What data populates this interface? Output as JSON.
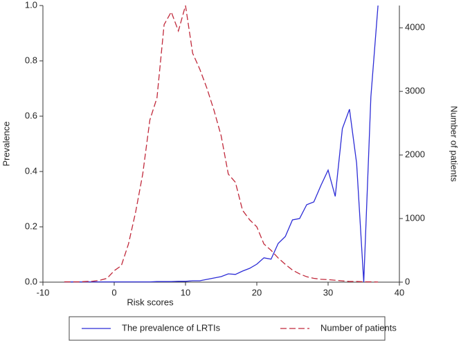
{
  "chart_data": {
    "type": "line",
    "x_label": "Risk scores",
    "y_label": "Prevalence",
    "y2_label": "Number of patients",
    "x": [
      -7,
      -6,
      -5,
      -4,
      -3,
      -2,
      -1,
      0,
      1,
      2,
      3,
      4,
      5,
      6,
      7,
      8,
      9,
      10,
      11,
      12,
      13,
      14,
      15,
      16,
      17,
      18,
      19,
      20,
      21,
      22,
      23,
      24,
      25,
      26,
      27,
      28,
      29,
      30,
      31,
      32,
      33,
      34,
      35,
      36,
      37
    ],
    "series": [
      {
        "name": "The prevalence of LRTIs",
        "color": "#2b2bd6",
        "dash": false,
        "values": [
          0.001,
          0.001,
          0.001,
          0.001,
          0.001,
          0.001,
          0.001,
          0.001,
          0.001,
          0.001,
          0.001,
          0.001,
          0.001,
          0.002,
          0.002,
          0.002,
          0.003,
          0.003,
          0.005,
          0.005,
          0.01,
          0.015,
          0.02,
          0.03,
          0.028,
          0.04,
          0.05,
          0.065,
          0.088,
          0.083,
          0.14,
          0.165,
          0.225,
          0.23,
          0.28,
          0.29,
          0.35,
          0.405,
          0.31,
          0.555,
          0.625,
          0.43,
          0.0,
          0.67,
          1.0
        ]
      },
      {
        "name": "Number of  patients",
        "color": "#c0283a",
        "dash": true,
        "axis": "y2",
        "values": [
          5,
          5,
          5,
          10,
          15,
          30,
          60,
          180,
          260,
          600,
          1100,
          1700,
          2550,
          2900,
          4050,
          4250,
          3950,
          4350,
          3600,
          3350,
          3050,
          2700,
          2300,
          1700,
          1570,
          1130,
          980,
          870,
          600,
          500,
          380,
          280,
          190,
          130,
          85,
          60,
          45,
          40,
          30,
          20,
          10,
          10,
          5,
          5,
          2
        ]
      }
    ],
    "xlim": [
      -10,
      40
    ],
    "xticks": [
      -10,
      0,
      10,
      20,
      30,
      40
    ],
    "ylim": [
      0,
      1
    ],
    "yticks": [
      {
        "value": 0,
        "label": "0.0"
      },
      0.2,
      0.4,
      0.6,
      0.8,
      {
        "value": 1,
        "label": "1.0"
      }
    ],
    "y2lim": [
      0,
      4350
    ],
    "y2ticks": [
      0,
      1000,
      2000,
      3000,
      4000
    ]
  }
}
